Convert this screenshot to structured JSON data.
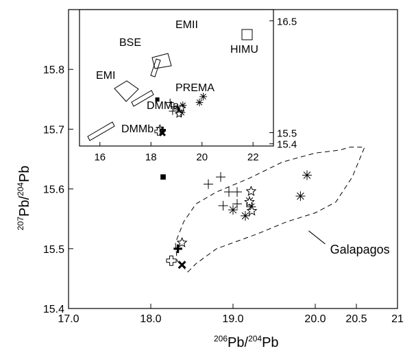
{
  "chart_data": [
    {
      "type": "scatter",
      "title": "",
      "xlabel": {
        "sup1": "206",
        "base1": "Pb/",
        "sup2": "204",
        "base2": "Pb"
      },
      "ylabel": {
        "sup1": "207",
        "base1": "Pb/",
        "sup2": "204",
        "base2": "Pb"
      },
      "xlim": [
        17.0,
        21.0
      ],
      "ylim": [
        15.4,
        15.9
      ],
      "xticks": [
        {
          "v": 17.0,
          "label": "17.0"
        },
        {
          "v": 18.0,
          "label": "18.0"
        },
        {
          "v": 19.0,
          "label": "19.0"
        },
        {
          "v": 20.0,
          "label": "20.0"
        },
        {
          "v": 20.5,
          "label": "20.5"
        },
        {
          "v": 21.0,
          "label": "21"
        }
      ],
      "yticks": [
        {
          "v": 15.4,
          "label": "15.4"
        },
        {
          "v": 15.5,
          "label": "15.5"
        },
        {
          "v": 15.6,
          "label": "15.6"
        },
        {
          "v": 15.7,
          "label": "15.7"
        },
        {
          "v": 15.8,
          "label": "15.8"
        }
      ],
      "grid": false,
      "series": [
        {
          "marker": "filled-square",
          "points": [
            [
              18.15,
              15.62
            ]
          ]
        },
        {
          "marker": "thin-plus",
          "points": [
            [
              18.7,
              15.608
            ],
            [
              18.85,
              15.62
            ],
            [
              18.95,
              15.595
            ],
            [
              19.05,
              15.595
            ],
            [
              19.05,
              15.575
            ],
            [
              18.88,
              15.572
            ]
          ]
        },
        {
          "marker": "asterisk",
          "points": [
            [
              19.0,
              15.565
            ],
            [
              19.15,
              15.555
            ],
            [
              19.2,
              15.58
            ],
            [
              19.22,
              15.57
            ],
            [
              19.82,
              15.588
            ],
            [
              19.9,
              15.623
            ]
          ]
        },
        {
          "marker": "open-star",
          "points": [
            [
              19.22,
              15.596
            ],
            [
              19.2,
              15.578
            ],
            [
              19.23,
              15.563
            ],
            [
              18.38,
              15.51
            ]
          ]
        },
        {
          "marker": "bold-plus",
          "points": [
            [
              18.33,
              15.5
            ]
          ]
        },
        {
          "marker": "open-cross",
          "points": [
            [
              18.25,
              15.48
            ]
          ]
        },
        {
          "marker": "bold-x",
          "points": [
            [
              18.38,
              15.473
            ]
          ]
        }
      ],
      "field": {
        "label": "Galapagos",
        "outline": [
          [
            18.45,
            15.461
          ],
          [
            18.55,
            15.475
          ],
          [
            18.8,
            15.5
          ],
          [
            19.3,
            15.525
          ],
          [
            19.65,
            15.545
          ],
          [
            20.0,
            15.56
          ],
          [
            20.25,
            15.578
          ],
          [
            20.45,
            15.62
          ],
          [
            20.6,
            15.67
          ],
          [
            20.42,
            15.67
          ],
          [
            20.3,
            15.665
          ],
          [
            20.0,
            15.66
          ],
          [
            19.6,
            15.645
          ],
          [
            19.2,
            15.618
          ],
          [
            18.8,
            15.595
          ],
          [
            18.55,
            15.575
          ],
          [
            18.4,
            15.545
          ],
          [
            18.3,
            15.51
          ],
          [
            18.32,
            15.48
          ],
          [
            18.45,
            15.461
          ]
        ]
      }
    },
    {
      "type": "scatter",
      "title": "",
      "xlabel": "",
      "ylabel": "",
      "xlim": [
        15.2,
        22.8
      ],
      "ylim": [
        15.38,
        16.6
      ],
      "xticks": [
        16,
        18,
        20,
        22
      ],
      "yticks": [
        {
          "v": 15.4,
          "label": "15.4"
        },
        {
          "v": 15.5,
          "label": "15.5"
        },
        {
          "v": 16.5,
          "label": "16.5"
        }
      ],
      "grid": false,
      "fields": [
        {
          "name": "EMI",
          "shape": "quadrilateral"
        },
        {
          "name": "EMII",
          "shape": "quadrilateral"
        },
        {
          "name": "HIMU",
          "shape": "square"
        },
        {
          "name": "DMMa",
          "shape": "slanted-band"
        },
        {
          "name": "DMMb",
          "shape": "slanted-band"
        },
        {
          "name": "BSE",
          "shape": "slanted-band"
        },
        {
          "name": "PREMA",
          "shape": "label"
        }
      ],
      "series_markers": [
        "filled-square",
        "thin-plus",
        "asterisk",
        "open-star",
        "bold-plus",
        "open-cross",
        "bold-x"
      ]
    }
  ]
}
